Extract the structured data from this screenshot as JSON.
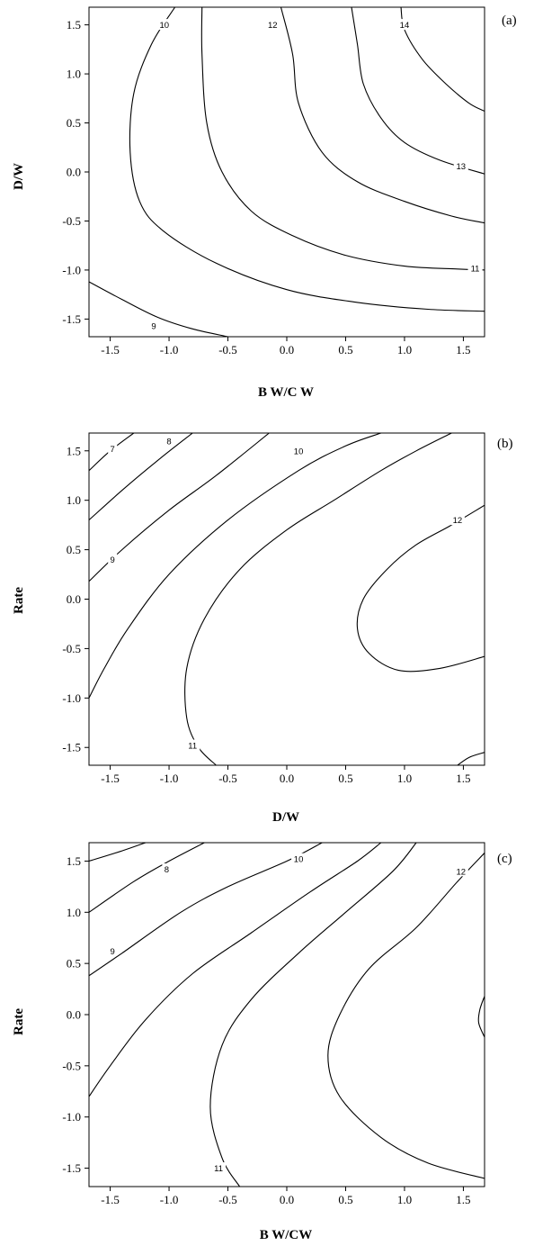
{
  "chart_data": [
    {
      "panel": "(a)",
      "type": "contour",
      "xlabel": "B W/C W",
      "ylabel": "D/W",
      "xlim": [
        -1.68,
        1.68
      ],
      "ylim": [
        -1.68,
        1.68
      ],
      "xticks": [
        "-1.5",
        "-1.0",
        "-0.5",
        "0.0",
        "0.5",
        "1.0",
        "1.5"
      ],
      "yticks": [
        "1.5",
        "1.0",
        "0.5",
        "0.0",
        "-0.5",
        "-1.0",
        "-1.5"
      ],
      "contours": [
        {
          "level": "9",
          "label_at": [
            -1.13,
            -1.57
          ],
          "points": [
            [
              -1.68,
              -1.12
            ],
            [
              -1.4,
              -1.3
            ],
            [
              -1.1,
              -1.48
            ],
            [
              -0.8,
              -1.6
            ],
            [
              -0.5,
              -1.68
            ]
          ]
        },
        {
          "level": "10",
          "label_at": [
            -1.04,
            1.5
          ],
          "points": [
            [
              -0.95,
              1.68
            ],
            [
              -1.15,
              1.3
            ],
            [
              -1.3,
              0.8
            ],
            [
              -1.33,
              0.2
            ],
            [
              -1.25,
              -0.3
            ],
            [
              -1.05,
              -0.6
            ],
            [
              -0.6,
              -0.93
            ],
            [
              0.0,
              -1.2
            ],
            [
              0.6,
              -1.33
            ],
            [
              1.2,
              -1.4
            ],
            [
              1.68,
              -1.42
            ]
          ]
        },
        {
          "level": "11",
          "label_at": [
            1.6,
            -0.98
          ],
          "points": [
            [
              -0.72,
              1.68
            ],
            [
              -0.72,
              1.2
            ],
            [
              -0.68,
              0.5
            ],
            [
              -0.55,
              0.0
            ],
            [
              -0.3,
              -0.4
            ],
            [
              0.05,
              -0.65
            ],
            [
              0.5,
              -0.85
            ],
            [
              1.0,
              -0.96
            ],
            [
              1.45,
              -0.99
            ],
            [
              1.68,
              -1.0
            ]
          ]
        },
        {
          "level": "12",
          "label_at": [
            -0.12,
            1.5
          ],
          "points": [
            [
              -0.05,
              1.68
            ],
            [
              0.05,
              1.2
            ],
            [
              0.1,
              0.7
            ],
            [
              0.3,
              0.2
            ],
            [
              0.6,
              -0.1
            ],
            [
              1.0,
              -0.3
            ],
            [
              1.4,
              -0.45
            ],
            [
              1.68,
              -0.52
            ]
          ]
        },
        {
          "level": "13",
          "label_at": [
            1.48,
            0.06
          ],
          "points": [
            [
              0.55,
              1.68
            ],
            [
              0.6,
              1.3
            ],
            [
              0.65,
              0.9
            ],
            [
              0.8,
              0.55
            ],
            [
              1.0,
              0.3
            ],
            [
              1.3,
              0.12
            ],
            [
              1.68,
              -0.02
            ]
          ]
        },
        {
          "level": "14",
          "label_at": [
            1.0,
            1.5
          ],
          "points": [
            [
              0.97,
              1.68
            ],
            [
              1.0,
              1.45
            ],
            [
              1.15,
              1.15
            ],
            [
              1.35,
              0.9
            ],
            [
              1.55,
              0.7
            ],
            [
              1.68,
              0.62
            ]
          ]
        }
      ]
    },
    {
      "panel": "(b)",
      "type": "contour",
      "xlabel": "D/W",
      "ylabel": "Rate",
      "xlim": [
        -1.68,
        1.68
      ],
      "ylim": [
        -1.68,
        1.68
      ],
      "xticks": [
        "-1.5",
        "-1.0",
        "-0.5",
        "0.0",
        "0.5",
        "1.0",
        "1.5"
      ],
      "yticks": [
        "1.5",
        "1.0",
        "0.5",
        "0.0",
        "-0.5",
        "-1.0",
        "-1.5"
      ],
      "contours": [
        {
          "level": "7",
          "label_at": [
            -1.48,
            1.52
          ],
          "points": [
            [
              -1.68,
              1.3
            ],
            [
              -1.5,
              1.5
            ],
            [
              -1.3,
              1.68
            ]
          ]
        },
        {
          "level": "8",
          "label_at": [
            -1.0,
            1.6
          ],
          "points": [
            [
              -1.68,
              0.8
            ],
            [
              -1.4,
              1.1
            ],
            [
              -1.1,
              1.4
            ],
            [
              -0.8,
              1.68
            ]
          ]
        },
        {
          "level": "9",
          "label_at": [
            -1.48,
            0.4
          ],
          "points": [
            [
              -1.68,
              0.18
            ],
            [
              -1.4,
              0.5
            ],
            [
              -1.0,
              0.9
            ],
            [
              -0.6,
              1.25
            ],
            [
              -0.15,
              1.68
            ]
          ]
        },
        {
          "level": "10",
          "label_at": [
            0.1,
            1.5
          ],
          "points": [
            [
              -1.68,
              -1.0
            ],
            [
              -1.55,
              -0.7
            ],
            [
              -1.35,
              -0.3
            ],
            [
              -1.0,
              0.25
            ],
            [
              -0.5,
              0.8
            ],
            [
              0.1,
              1.3
            ],
            [
              0.5,
              1.55
            ],
            [
              0.8,
              1.68
            ]
          ]
        },
        {
          "level": "11",
          "label_at": [
            -0.8,
            -1.48
          ],
          "points": [
            [
              -0.6,
              -1.68
            ],
            [
              -0.75,
              -1.5
            ],
            [
              -0.85,
              -1.2
            ],
            [
              -0.85,
              -0.7
            ],
            [
              -0.7,
              -0.2
            ],
            [
              -0.4,
              0.3
            ],
            [
              0.0,
              0.7
            ],
            [
              0.4,
              1.0
            ],
            [
              0.8,
              1.3
            ],
            [
              1.1,
              1.5
            ],
            [
              1.4,
              1.68
            ]
          ]
        },
        {
          "level": "12",
          "label_at": [
            1.45,
            0.8
          ],
          "points": [
            [
              1.68,
              0.95
            ],
            [
              1.4,
              0.75
            ],
            [
              1.1,
              0.55
            ],
            [
              0.85,
              0.3
            ],
            [
              0.65,
              0.0
            ],
            [
              0.6,
              -0.3
            ],
            [
              0.7,
              -0.55
            ],
            [
              0.95,
              -0.72
            ],
            [
              1.3,
              -0.7
            ],
            [
              1.68,
              -0.58
            ]
          ]
        },
        {
          "level": "12",
          "label_at": null,
          "points": [
            [
              1.45,
              -1.68
            ],
            [
              1.55,
              -1.6
            ],
            [
              1.68,
              -1.55
            ]
          ]
        }
      ]
    },
    {
      "panel": "(c)",
      "type": "contour",
      "xlabel": "B W/CW",
      "ylabel": "Rate",
      "xlim": [
        -1.68,
        1.68
      ],
      "ylim": [
        -1.68,
        1.68
      ],
      "xticks": [
        "-1.5",
        "-1.0",
        "-0.5",
        "0.0",
        "0.5",
        "1.0",
        "1.5"
      ],
      "yticks": [
        "1.5",
        "1.0",
        "0.5",
        "0.0",
        "-0.5",
        "-1.0",
        "-1.5"
      ],
      "contours": [
        {
          "level": "8",
          "label_at": [
            -1.02,
            1.42
          ],
          "points": [
            [
              -1.68,
              1.5
            ],
            [
              -1.4,
              1.6
            ],
            [
              -1.2,
              1.68
            ]
          ]
        },
        {
          "level": "9",
          "label_at": [
            -1.48,
            0.62
          ],
          "points": [
            [
              -1.68,
              1.0
            ],
            [
              -1.3,
              1.3
            ],
            [
              -1.0,
              1.5
            ],
            [
              -0.7,
              1.68
            ]
          ]
        },
        {
          "level": "10",
          "label_at": [
            0.1,
            1.52
          ],
          "points": [
            [
              -1.68,
              0.38
            ],
            [
              -1.4,
              0.6
            ],
            [
              -0.9,
              1.0
            ],
            [
              -0.5,
              1.25
            ],
            [
              0.0,
              1.5
            ],
            [
              0.3,
              1.68
            ]
          ]
        },
        {
          "level": "11",
          "label_at": [
            -0.58,
            -1.5
          ],
          "points": [
            [
              -1.68,
              -0.8
            ],
            [
              -1.5,
              -0.5
            ],
            [
              -1.2,
              -0.05
            ],
            [
              -0.8,
              0.4
            ],
            [
              -0.3,
              0.8
            ],
            [
              0.2,
              1.2
            ],
            [
              0.6,
              1.5
            ],
            [
              0.8,
              1.68
            ]
          ]
        },
        {
          "level": "11",
          "label_at": null,
          "points": [
            [
              -0.4,
              -1.68
            ],
            [
              -0.55,
              -1.4
            ],
            [
              -0.65,
              -0.9
            ],
            [
              -0.55,
              -0.3
            ],
            [
              -0.3,
              0.15
            ],
            [
              0.1,
              0.6
            ],
            [
              0.5,
              1.0
            ],
            [
              0.9,
              1.4
            ],
            [
              1.1,
              1.68
            ]
          ]
        },
        {
          "level": "12",
          "label_at": [
            1.48,
            1.4
          ],
          "points": [
            [
              1.68,
              1.58
            ],
            [
              1.45,
              1.3
            ],
            [
              1.1,
              0.85
            ],
            [
              0.7,
              0.45
            ],
            [
              0.45,
              0.0
            ],
            [
              0.35,
              -0.4
            ],
            [
              0.45,
              -0.8
            ],
            [
              0.8,
              -1.2
            ],
            [
              1.2,
              -1.45
            ],
            [
              1.68,
              -1.6
            ]
          ]
        },
        {
          "level": "12",
          "label_at": null,
          "points": [
            [
              1.68,
              0.18
            ],
            [
              1.64,
              0.05
            ],
            [
              1.63,
              -0.08
            ],
            [
              1.68,
              -0.22
            ]
          ]
        }
      ]
    }
  ]
}
